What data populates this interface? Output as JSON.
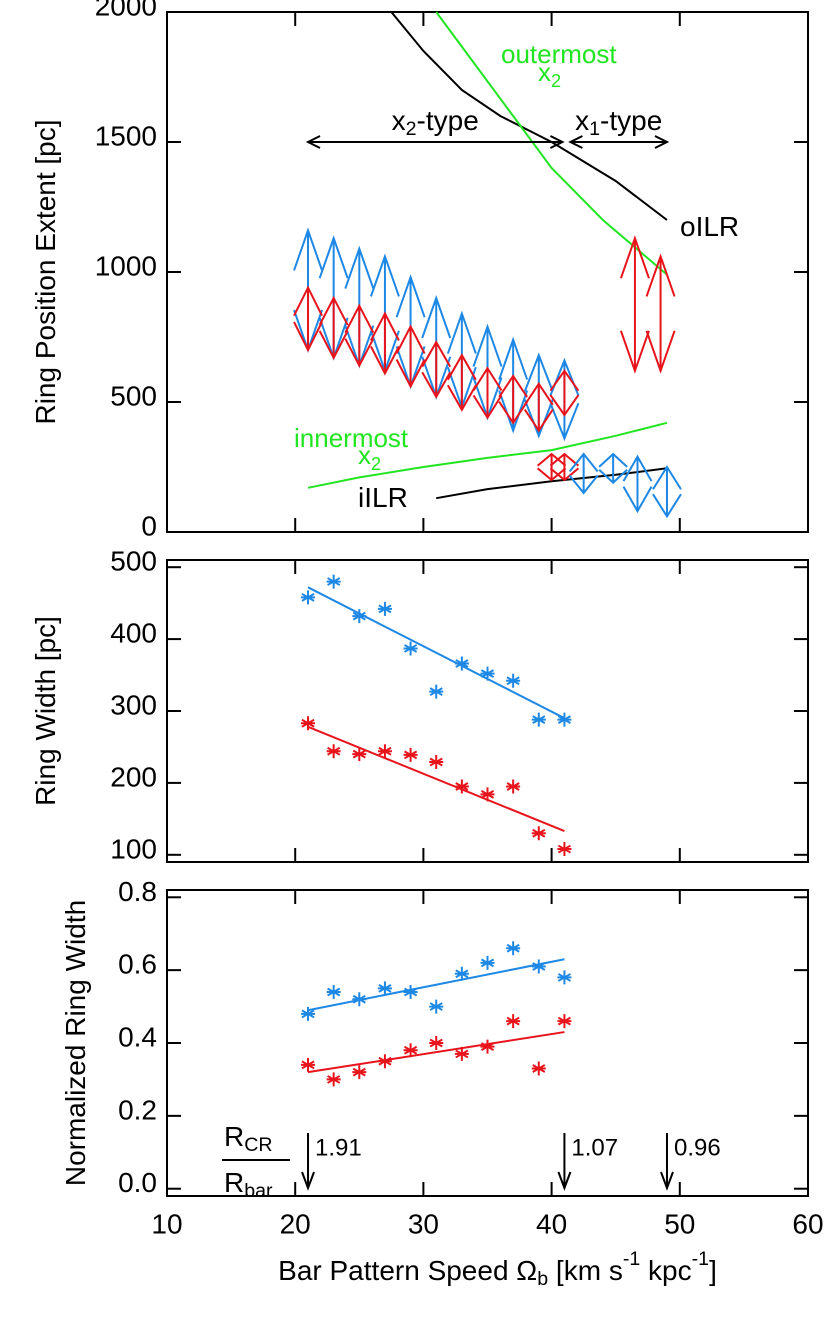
{
  "chart_data": [
    {
      "type": "range",
      "ylabel": [
        {
          "text": "Ring Position Extent [pc]"
        }
      ],
      "ylim": [
        0,
        2000
      ],
      "yticks": [
        0,
        500,
        1000,
        1500,
        2000
      ],
      "series": [
        {
          "color": "#1e88e5",
          "x": [
            21,
            23,
            25,
            27,
            29,
            31,
            33,
            35,
            37,
            39,
            41
          ],
          "low": [
            700,
            670,
            640,
            620,
            560,
            520,
            480,
            440,
            390,
            370,
            360
          ],
          "high": [
            1160,
            1130,
            1090,
            1060,
            980,
            900,
            840,
            790,
            740,
            680,
            660
          ]
        },
        {
          "color": "#e8141c",
          "x": [
            21,
            23,
            25,
            27,
            29,
            31,
            33,
            35,
            37,
            39,
            41
          ],
          "low": [
            700,
            670,
            640,
            610,
            560,
            520,
            470,
            440,
            420,
            390,
            450
          ],
          "high": [
            940,
            900,
            870,
            840,
            790,
            730,
            680,
            630,
            600,
            570,
            620
          ]
        },
        {
          "color": "#e8141c",
          "x": [
            46.5,
            48.5
          ],
          "low": [
            620,
            620
          ],
          "high": [
            1130,
            1060
          ]
        },
        {
          "color": "#e8141c",
          "x": [
            40,
            41
          ],
          "low": [
            200,
            200
          ],
          "high": [
            300,
            300
          ]
        },
        {
          "color": "#1e88e5",
          "x": [
            42.5,
            44.8,
            46.7,
            49
          ],
          "low": [
            150,
            190,
            80,
            60
          ],
          "high": [
            300,
            300,
            290,
            250
          ]
        }
      ],
      "lines": [
        {
          "color": "#000000",
          "x": [
            27.5,
            30,
            33,
            36,
            40,
            45,
            49
          ],
          "values": [
            2000,
            1850,
            1700,
            1600,
            1500,
            1350,
            1200
          ]
        },
        {
          "color": "#000000",
          "x": [
            31,
            35,
            40,
            45,
            49
          ],
          "values": [
            130,
            165,
            195,
            220,
            245
          ]
        },
        {
          "color": "#22e522",
          "x": [
            31,
            34,
            37,
            40,
            44,
            49
          ],
          "values": [
            2000,
            1800,
            1600,
            1400,
            1200,
            990
          ]
        },
        {
          "color": "#22e522",
          "x": [
            21,
            25,
            30,
            35,
            40,
            45,
            49
          ],
          "values": [
            170,
            210,
            250,
            285,
            315,
            370,
            420
          ]
        }
      ],
      "annotations": [
        {
          "color": "#22e522",
          "parts": [
            {
              "text": "outermost"
            }
          ]
        },
        {
          "color": "#22e522",
          "parts": [
            {
              "text": "x"
            },
            {
              "sub": "2"
            }
          ]
        },
        {
          "color": "#000000",
          "parts": [
            {
              "text": "oILR"
            }
          ]
        },
        {
          "color": "#22e522",
          "parts": [
            {
              "text": "innermost"
            }
          ]
        },
        {
          "color": "#22e522",
          "parts": [
            {
              "text": "x"
            },
            {
              "sub": "2"
            }
          ]
        },
        {
          "color": "#000000",
          "parts": [
            {
              "text": "iILR"
            }
          ]
        }
      ],
      "regions": [
        {
          "from": 21,
          "to": 41,
          "y": 1500,
          "parts": [
            {
              "text": "x"
            },
            {
              "sub": "2"
            },
            {
              "text": "-type"
            }
          ]
        },
        {
          "from": 41,
          "to": 49,
          "y": 1500,
          "parts": [
            {
              "text": "x"
            },
            {
              "sub": "1"
            },
            {
              "text": "-type"
            }
          ]
        }
      ]
    },
    {
      "type": "scatter",
      "ylabel": [
        {
          "text": "Ring Width [pc]"
        }
      ],
      "ylim": [
        90,
        510
      ],
      "yticks": [
        100,
        200,
        300,
        400,
        500
      ],
      "series": [
        {
          "color": "#1e88e5",
          "x": [
            21,
            23,
            25,
            27,
            29,
            31,
            33,
            35,
            37,
            39,
            41
          ],
          "values": [
            458,
            480,
            432,
            442,
            387,
            327,
            366,
            352,
            342,
            288,
            288
          ],
          "fit_x": [
            21,
            41
          ],
          "fit_values": [
            472,
            290
          ]
        },
        {
          "color": "#e8141c",
          "x": [
            21,
            23,
            25,
            27,
            29,
            31,
            33,
            35,
            37,
            39,
            41
          ],
          "values": [
            283,
            244,
            240,
            244,
            239,
            229,
            195,
            184,
            195,
            130,
            108
          ],
          "fit_x": [
            21,
            41
          ],
          "fit_values": [
            278,
            133
          ]
        }
      ]
    },
    {
      "type": "scatter",
      "ylabel": [
        {
          "text": "Normalized Ring Width"
        }
      ],
      "ylim": [
        -0.02,
        0.82
      ],
      "yticks": [
        {
          "value": 0,
          "label": "0.0"
        },
        {
          "value": 0.2,
          "label": "0.2"
        },
        {
          "value": 0.4,
          "label": "0.4"
        },
        {
          "value": 0.6,
          "label": "0.6"
        },
        {
          "value": 0.8,
          "label": "0.8"
        }
      ],
      "xlabel": [
        {
          "text": "Bar Pattern Speed Ω"
        },
        {
          "sub": "b"
        },
        {
          "text": " [km s"
        },
        {
          "sup": "-1"
        },
        {
          "text": " kpc"
        },
        {
          "sup": "-1"
        },
        {
          "text": "]"
        }
      ],
      "xlim": [
        10,
        60
      ],
      "xticks": [
        10,
        20,
        30,
        40,
        50,
        60
      ],
      "series": [
        {
          "color": "#1e88e5",
          "x": [
            21,
            23,
            25,
            27,
            29,
            31,
            33,
            35,
            37,
            39,
            41
          ],
          "values": [
            0.48,
            0.54,
            0.52,
            0.55,
            0.54,
            0.5,
            0.59,
            0.62,
            0.66,
            0.61,
            0.58
          ],
          "fit_x": [
            21,
            41
          ],
          "fit_values": [
            0.49,
            0.63
          ]
        },
        {
          "color": "#e8141c",
          "x": [
            21,
            23,
            25,
            27,
            29,
            31,
            33,
            35,
            37,
            39,
            41
          ],
          "values": [
            0.34,
            0.3,
            0.32,
            0.35,
            0.38,
            0.4,
            0.37,
            0.39,
            0.46,
            0.33,
            0.46
          ],
          "fit_x": [
            21,
            41
          ],
          "fit_values": [
            0.32,
            0.43
          ]
        }
      ],
      "ratio_numerator": [
        {
          "text": "R"
        },
        {
          "sub": "CR"
        }
      ],
      "ratio_denominator": [
        {
          "text": "R"
        },
        {
          "sub": "bar"
        }
      ],
      "markers": {
        "x": [
          21,
          41,
          49
        ],
        "labels": [
          "1.91",
          "1.07",
          "0.96"
        ]
      }
    }
  ]
}
